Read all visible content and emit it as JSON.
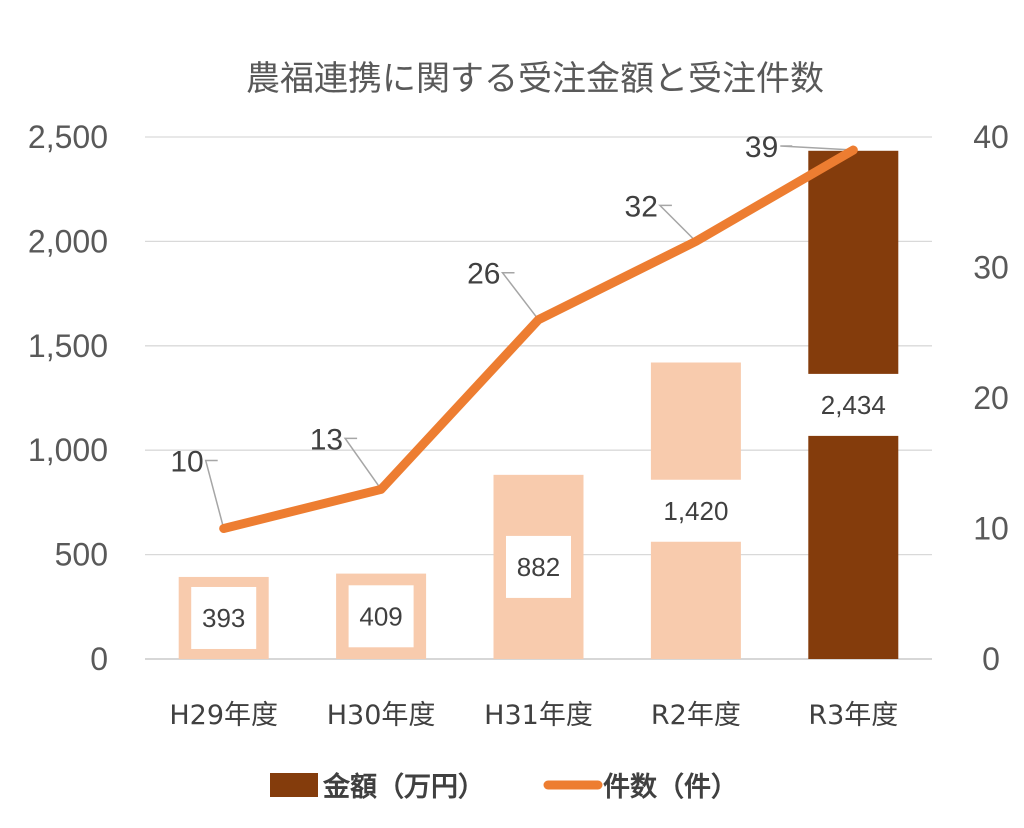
{
  "chart_data": {
    "type": "bar",
    "title": "農福連携に関する受注金額と受注件数",
    "categories": [
      "H29年度",
      "H30年度",
      "H31年度",
      "R2年度",
      "R3年度"
    ],
    "y_left": {
      "ticks": [
        "0",
        "500",
        "1,000",
        "1,500",
        "2,000",
        "2,500"
      ],
      "ylim": [
        0,
        2500
      ]
    },
    "y_right": {
      "ticks": [
        "0",
        "10",
        "20",
        "30",
        "40"
      ],
      "ylim": [
        0,
        40
      ]
    },
    "grid": true,
    "legend_position": "bottom",
    "series": [
      {
        "name": "金額（万円）",
        "type": "bar",
        "axis": "left",
        "values": [
          393,
          409,
          882,
          1420,
          2434
        ],
        "labels": [
          "393",
          "409",
          "882",
          "1,420",
          "2,434"
        ],
        "colors": [
          "#F8CBAD",
          "#F8CBAD",
          "#F8CBAD",
          "#F8CBAD",
          "#843C0C"
        ],
        "legend_color": "#843C0C"
      },
      {
        "name": "件数（件）",
        "type": "line",
        "axis": "right",
        "values": [
          10,
          13,
          26,
          32,
          39
        ],
        "labels": [
          "10",
          "13",
          "26",
          "32",
          "39"
        ],
        "color": "#ED7D31"
      }
    ]
  }
}
